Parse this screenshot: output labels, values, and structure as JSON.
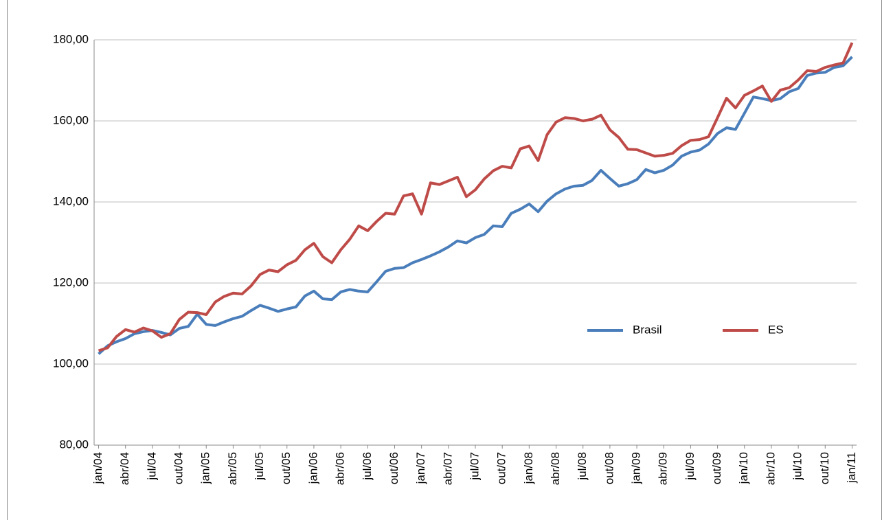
{
  "chart_data": {
    "type": "line",
    "categories": [
      "jan/04",
      null,
      null,
      "abr/04",
      null,
      null,
      "jul/04",
      null,
      null,
      "out/04",
      null,
      null,
      "jan/05",
      null,
      null,
      "abr/05",
      null,
      null,
      "jul/05",
      null,
      null,
      "out/05",
      null,
      null,
      "jan/06",
      null,
      null,
      "abr/06",
      null,
      null,
      "jul/06",
      null,
      null,
      "out/06",
      null,
      null,
      "jan/07",
      null,
      null,
      "abr/07",
      null,
      null,
      "jul/07",
      null,
      null,
      "out/07",
      null,
      null,
      "jan/08",
      null,
      null,
      "abr/08",
      null,
      null,
      "jul/08",
      null,
      null,
      "out/08",
      null,
      null,
      "jan/09",
      null,
      null,
      "abr/09",
      null,
      null,
      "jul/09",
      null,
      null,
      "out/09",
      null,
      null,
      "jan/10",
      null,
      null,
      "abr/10",
      null,
      null,
      "jul/10",
      null,
      null,
      "out/10",
      null,
      null,
      "jan/11"
    ],
    "series": [
      {
        "name": "Brasil",
        "color": "#4a7ebb",
        "values": [
          102.5,
          104.5,
          105.5,
          106.3,
          107.5,
          108,
          108.3,
          107.8,
          107.2,
          108.8,
          109.3,
          112.3,
          109.8,
          109.5,
          110.4,
          111.2,
          111.8,
          113.2,
          114.5,
          113.8,
          113,
          113.6,
          114.1,
          116.8,
          118,
          116.1,
          115.9,
          117.8,
          118.4,
          118,
          117.8,
          120.3,
          122.9,
          123.6,
          123.8,
          125,
          125.8,
          126.7,
          127.7,
          128.9,
          130.4,
          129.9,
          131.2,
          132,
          134.1,
          133.9,
          137.2,
          138.2,
          139.5,
          137.6,
          140.2,
          142,
          143.2,
          143.9,
          144.1,
          145.3,
          147.8,
          145.8,
          143.9,
          144.5,
          145.5,
          148,
          147.2,
          147.8,
          149.1,
          151.3,
          152.3,
          152.8,
          154.3,
          156.9,
          158.3,
          157.9,
          161.9,
          165.9,
          165.5,
          165,
          165.5,
          167.2,
          168,
          171.2,
          171.8,
          172,
          173.2,
          173.6,
          175.8
        ]
      },
      {
        "name": "ES",
        "color": "#be4b48",
        "values": [
          103.3,
          104,
          106.8,
          108.5,
          107.9,
          108.9,
          108.2,
          106.6,
          107.5,
          111,
          112.8,
          112.7,
          112.2,
          115.3,
          116.7,
          117.5,
          117.3,
          119.3,
          122.1,
          123.2,
          122.8,
          124.5,
          125.6,
          128.2,
          129.8,
          126.5,
          125,
          128.2,
          130.8,
          134.1,
          132.9,
          135.2,
          137.2,
          137,
          141.5,
          142,
          137,
          144.7,
          144.3,
          145.2,
          146.1,
          141.3,
          143,
          145.7,
          147.7,
          148.8,
          148.4,
          153.1,
          153.8,
          150.2,
          156.6,
          159.7,
          160.8,
          160.6,
          160,
          160.4,
          161.4,
          157.8,
          155.9,
          153,
          152.9,
          152.1,
          151.3,
          151.5,
          152,
          153.9,
          155.2,
          155.4,
          156.1,
          160.8,
          165.6,
          163.2,
          166.3,
          167.4,
          168.6,
          164.8,
          167.6,
          168.2,
          170.1,
          172.4,
          172.2,
          173.2,
          173.8,
          174.3,
          179.3
        ]
      }
    ],
    "ylim": [
      80,
      180
    ],
    "yticks": [
      {
        "value": 80,
        "label": "80,00"
      },
      {
        "value": 100,
        "label": "100,00"
      },
      {
        "value": 120,
        "label": "120,00"
      },
      {
        "value": 140,
        "label": "140,00"
      },
      {
        "value": 160,
        "label": "160,00"
      },
      {
        "value": 180,
        "label": "180,00"
      }
    ],
    "grid": true,
    "legend": "center-right"
  }
}
